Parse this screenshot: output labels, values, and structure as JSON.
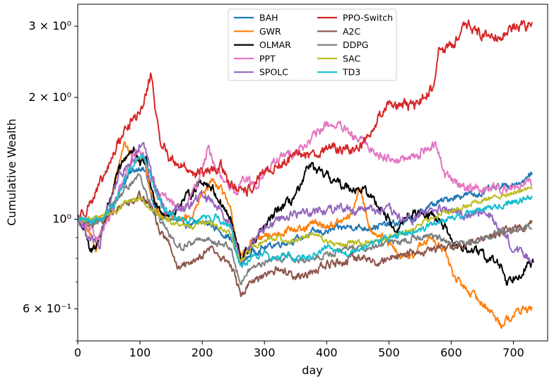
{
  "chart_data": {
    "type": "line",
    "xlabel": "day",
    "ylabel": "Cumulative Wealth",
    "xlim": [
      0,
      755
    ],
    "ylim": [
      0.5,
      3.4
    ],
    "yscale": "log",
    "xticks": [
      0,
      100,
      200,
      300,
      400,
      500,
      600,
      700
    ],
    "xtick_labels": [
      "0",
      "100",
      "200",
      "300",
      "400",
      "500",
      "600",
      "700"
    ],
    "yticks": [
      0.6,
      1,
      2,
      3
    ],
    "ytick_labels": [
      "6 × 10⁻¹",
      "10⁰",
      "2 × 10⁰",
      "3 × 10⁰"
    ],
    "grid": false,
    "legend_position": "top-center",
    "legend_columns": 2,
    "series": [
      {
        "name": "BAH",
        "color": "#1f77b4",
        "noise": 0.01,
        "x": [
          0,
          20,
          40,
          55,
          70,
          85,
          100,
          110,
          120,
          135,
          150,
          165,
          180,
          200,
          215,
          230,
          245,
          262,
          280,
          300,
          320,
          340,
          360,
          380,
          400,
          420,
          440,
          460,
          480,
          500,
          520,
          540,
          560,
          580,
          600,
          620,
          640,
          660,
          680,
          700,
          720,
          730
        ],
        "y": [
          1.0,
          0.99,
          1.0,
          1.05,
          1.2,
          1.3,
          1.35,
          1.3,
          1.1,
          1.0,
          1.0,
          0.98,
          0.97,
          0.98,
          0.97,
          0.93,
          0.9,
          0.77,
          0.83,
          0.85,
          0.87,
          0.88,
          0.9,
          0.93,
          0.93,
          0.95,
          0.96,
          0.95,
          0.96,
          0.97,
          0.98,
          1.0,
          1.07,
          1.1,
          1.13,
          1.15,
          1.15,
          1.18,
          1.2,
          1.22,
          1.25,
          1.3
        ]
      },
      {
        "name": "GWR",
        "color": "#ff7f0e",
        "noise": 0.012,
        "x": [
          0,
          15,
          30,
          50,
          65,
          75,
          90,
          105,
          115,
          130,
          150,
          170,
          185,
          200,
          215,
          230,
          245,
          262,
          280,
          300,
          320,
          340,
          360,
          380,
          400,
          420,
          440,
          452,
          470,
          490,
          505,
          520,
          540,
          555,
          570,
          590,
          605,
          620,
          640,
          660,
          680,
          700,
          715,
          730
        ],
        "y": [
          1.0,
          0.95,
          0.85,
          1.05,
          1.35,
          1.55,
          1.4,
          1.45,
          1.2,
          1.05,
          1.0,
          1.0,
          1.02,
          1.15,
          1.25,
          1.2,
          1.05,
          0.8,
          0.88,
          0.9,
          0.92,
          0.95,
          0.93,
          0.98,
          0.96,
          0.98,
          1.02,
          1.2,
          0.95,
          0.9,
          0.85,
          0.8,
          0.82,
          0.87,
          0.9,
          0.83,
          0.72,
          0.68,
          0.64,
          0.6,
          0.55,
          0.58,
          0.6,
          0.6
        ]
      },
      {
        "name": "OLMAR",
        "color": "#000000",
        "noise": 0.014,
        "x": [
          0,
          10,
          20,
          35,
          50,
          65,
          80,
          90,
          100,
          110,
          120,
          135,
          150,
          165,
          180,
          200,
          215,
          230,
          245,
          262,
          280,
          300,
          320,
          340,
          360,
          372,
          385,
          400,
          420,
          440,
          460,
          480,
          500,
          510,
          530,
          550,
          570,
          590,
          600,
          620,
          640,
          660,
          680,
          690,
          700,
          720,
          732
        ],
        "y": [
          1.0,
          0.95,
          0.82,
          0.9,
          1.1,
          1.3,
          1.45,
          1.5,
          1.35,
          1.4,
          1.15,
          1.05,
          1.02,
          1.1,
          1.15,
          1.25,
          1.2,
          1.1,
          1.0,
          0.8,
          0.86,
          0.95,
          1.05,
          1.1,
          1.2,
          1.38,
          1.3,
          1.28,
          1.22,
          1.2,
          1.18,
          1.1,
          1.0,
          0.92,
          1.02,
          1.04,
          1.03,
          0.95,
          0.87,
          0.85,
          0.83,
          0.8,
          0.77,
          0.7,
          0.72,
          0.76,
          0.78
        ]
      },
      {
        "name": "PPT",
        "color": "#e377c2",
        "noise": 0.014,
        "x": [
          0,
          15,
          30,
          50,
          70,
          90,
          100,
          115,
          130,
          150,
          170,
          190,
          210,
          225,
          240,
          255,
          265,
          285,
          300,
          320,
          340,
          360,
          380,
          400,
          420,
          440,
          460,
          480,
          500,
          520,
          540,
          560,
          575,
          590,
          610,
          630,
          650,
          670,
          690,
          710,
          730
        ],
        "y": [
          1.0,
          0.95,
          0.9,
          1.0,
          1.2,
          1.45,
          1.5,
          1.3,
          1.15,
          1.1,
          1.05,
          1.2,
          1.5,
          1.3,
          1.2,
          1.15,
          1.3,
          1.2,
          1.3,
          1.4,
          1.45,
          1.5,
          1.6,
          1.72,
          1.7,
          1.6,
          1.55,
          1.45,
          1.42,
          1.4,
          1.42,
          1.5,
          1.52,
          1.3,
          1.22,
          1.2,
          1.18,
          1.2,
          1.2,
          1.2,
          1.23
        ]
      },
      {
        "name": "SPOLC",
        "color": "#9467bd",
        "noise": 0.014,
        "x": [
          0,
          20,
          35,
          50,
          70,
          90,
          105,
          120,
          140,
          160,
          180,
          200,
          215,
          230,
          245,
          262,
          280,
          300,
          320,
          340,
          360,
          380,
          400,
          420,
          440,
          460,
          480,
          500,
          520,
          540,
          560,
          580,
          600,
          620,
          640,
          660,
          680,
          700,
          715,
          730
        ],
        "y": [
          1.0,
          0.9,
          0.85,
          1.1,
          1.3,
          1.4,
          1.55,
          1.25,
          1.05,
          1.05,
          1.08,
          1.15,
          1.12,
          1.05,
          0.98,
          0.78,
          0.88,
          0.95,
          1.0,
          1.02,
          1.04,
          1.05,
          1.05,
          1.08,
          1.05,
          1.07,
          1.05,
          1.05,
          1.0,
          1.0,
          1.05,
          1.05,
          1.05,
          1.02,
          1.05,
          1.02,
          0.95,
          0.85,
          0.82,
          0.8
        ]
      },
      {
        "name": "PPO-Switch",
        "color": "#d62728",
        "noise": 0.016,
        "x": [
          0,
          10,
          20,
          35,
          50,
          65,
          80,
          95,
          105,
          112,
          118,
          130,
          150,
          170,
          190,
          210,
          230,
          250,
          265,
          280,
          300,
          320,
          340,
          360,
          380,
          400,
          420,
          440,
          460,
          480,
          500,
          520,
          540,
          555,
          570,
          580,
          595,
          610,
          620,
          640,
          660,
          680,
          700,
          715,
          730
        ],
        "y": [
          1.0,
          1.05,
          1.1,
          1.2,
          1.35,
          1.55,
          1.7,
          1.8,
          1.9,
          2.1,
          2.3,
          1.6,
          1.4,
          1.35,
          1.3,
          1.3,
          1.35,
          1.2,
          1.15,
          1.2,
          1.3,
          1.35,
          1.4,
          1.45,
          1.45,
          1.5,
          1.5,
          1.48,
          1.55,
          1.75,
          1.95,
          1.9,
          1.9,
          2.0,
          2.1,
          2.6,
          2.65,
          2.8,
          3.1,
          2.9,
          2.85,
          2.85,
          3.0,
          3.0,
          3.02
        ]
      },
      {
        "name": "A2C",
        "color": "#8c564b",
        "noise": 0.012,
        "x": [
          0,
          20,
          40,
          60,
          80,
          100,
          115,
          130,
          150,
          160,
          180,
          200,
          215,
          230,
          245,
          262,
          280,
          300,
          320,
          340,
          360,
          380,
          400,
          420,
          440,
          460,
          480,
          500,
          520,
          540,
          560,
          580,
          600,
          620,
          640,
          660,
          680,
          700,
          715,
          730
        ],
        "y": [
          1.0,
          0.98,
          1.0,
          1.05,
          1.1,
          1.15,
          1.1,
          0.95,
          0.85,
          0.75,
          0.78,
          0.82,
          0.85,
          0.8,
          0.78,
          0.65,
          0.7,
          0.72,
          0.75,
          0.74,
          0.72,
          0.75,
          0.77,
          0.78,
          0.8,
          0.8,
          0.78,
          0.8,
          0.82,
          0.83,
          0.84,
          0.85,
          0.85,
          0.87,
          0.88,
          0.9,
          0.93,
          0.95,
          0.95,
          0.97
        ]
      },
      {
        "name": "DDPG",
        "color": "#7f7f7f",
        "noise": 0.01,
        "x": [
          0,
          20,
          40,
          60,
          80,
          100,
          120,
          140,
          160,
          180,
          200,
          220,
          245,
          262,
          280,
          300,
          320,
          340,
          360,
          380,
          400,
          420,
          440,
          460,
          480,
          500,
          520,
          540,
          560,
          580,
          600,
          620,
          640,
          660,
          680,
          700,
          715,
          730
        ],
        "y": [
          1.0,
          0.98,
          1.0,
          1.1,
          1.2,
          1.3,
          1.05,
          0.95,
          0.85,
          0.87,
          0.9,
          0.88,
          0.85,
          0.7,
          0.76,
          0.78,
          0.8,
          0.8,
          0.79,
          0.8,
          0.82,
          0.83,
          0.85,
          0.85,
          0.86,
          0.88,
          0.88,
          0.9,
          0.9,
          0.9,
          0.88,
          0.87,
          0.88,
          0.9,
          0.93,
          0.94,
          0.95,
          0.96
        ]
      },
      {
        "name": "SAC",
        "color": "#bcbd22",
        "noise": 0.008,
        "x": [
          0,
          20,
          40,
          60,
          80,
          100,
          120,
          140,
          160,
          180,
          200,
          220,
          245,
          262,
          280,
          300,
          320,
          340,
          360,
          380,
          400,
          420,
          440,
          460,
          480,
          500,
          520,
          540,
          560,
          580,
          600,
          620,
          640,
          660,
          680,
          700,
          715,
          730
        ],
        "y": [
          1.0,
          1.0,
          1.02,
          1.05,
          1.1,
          1.12,
          1.05,
          1.0,
          0.97,
          0.96,
          0.98,
          0.97,
          0.92,
          0.78,
          0.85,
          0.88,
          0.9,
          0.88,
          0.9,
          0.92,
          0.88,
          0.86,
          0.88,
          0.87,
          0.88,
          0.9,
          0.92,
          0.95,
          1.0,
          1.02,
          1.05,
          1.08,
          1.1,
          1.12,
          1.14,
          1.16,
          1.18,
          1.2
        ]
      },
      {
        "name": "TD3",
        "color": "#17becf",
        "noise": 0.01,
        "x": [
          0,
          20,
          40,
          60,
          80,
          100,
          110,
          125,
          140,
          160,
          180,
          200,
          220,
          245,
          262,
          280,
          300,
          320,
          340,
          360,
          380,
          400,
          420,
          440,
          460,
          480,
          500,
          520,
          540,
          560,
          580,
          600,
          620,
          640,
          660,
          680,
          700,
          715,
          730
        ],
        "y": [
          1.0,
          1.0,
          1.0,
          1.1,
          1.3,
          1.45,
          1.4,
          1.15,
          1.05,
          1.0,
          0.98,
          1.0,
          1.02,
          0.95,
          0.76,
          0.8,
          0.82,
          0.8,
          0.82,
          0.8,
          0.82,
          0.85,
          0.83,
          0.82,
          0.85,
          0.88,
          0.9,
          0.92,
          0.93,
          0.95,
          0.98,
          1.0,
          1.02,
          1.05,
          1.07,
          1.08,
          1.1,
          1.12,
          1.13
        ]
      }
    ]
  }
}
